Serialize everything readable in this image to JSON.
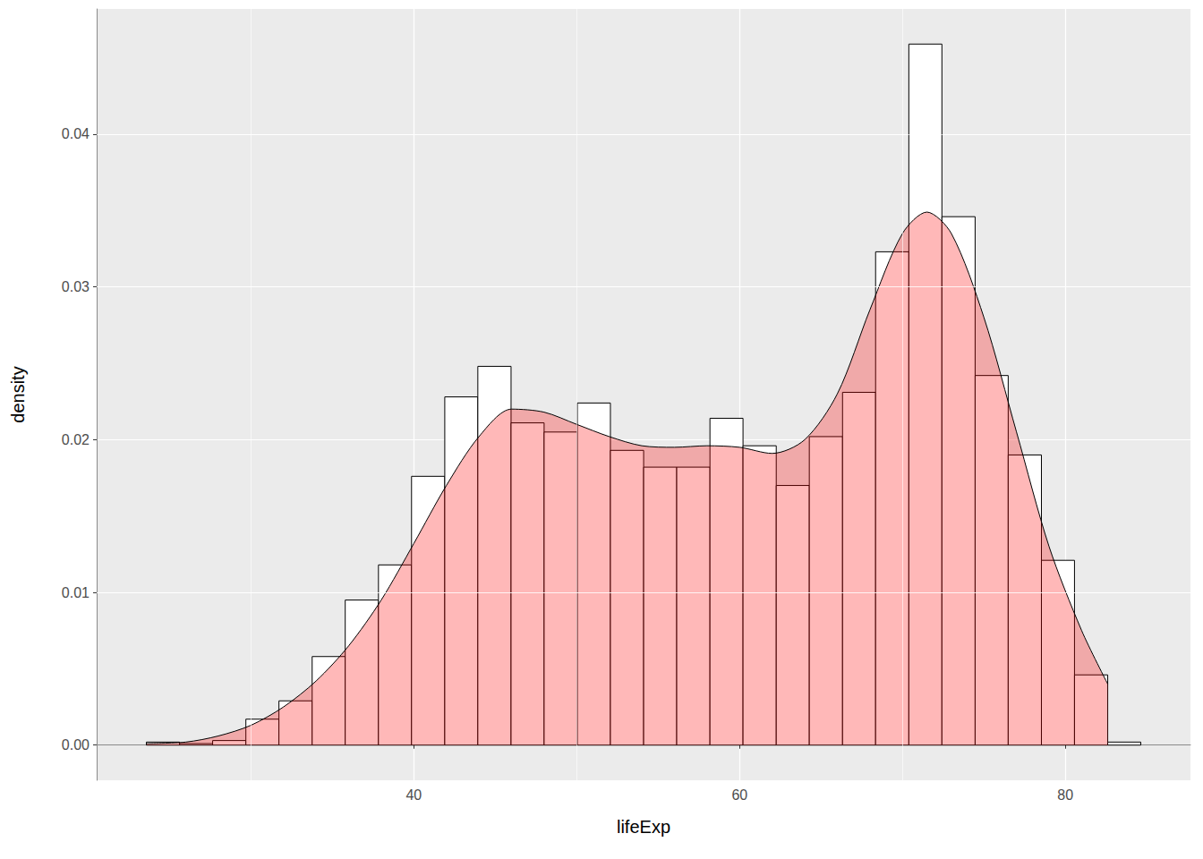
{
  "chart_data": {
    "type": "histogram",
    "x_label": "lifeExp",
    "y_label": "density",
    "bins": [
      23.58,
      25.62,
      27.65,
      29.69,
      31.72,
      33.76,
      35.79,
      37.83,
      39.86,
      41.9,
      43.93,
      45.97,
      48.0,
      50.04,
      52.07,
      54.11,
      56.14,
      58.18,
      60.21,
      62.25,
      64.28,
      66.32,
      68.35,
      70.39,
      72.42,
      74.46,
      76.49,
      78.53,
      80.56,
      82.6,
      84.63
    ],
    "values": [
      0.0002,
      0.0001,
      0.0003,
      0.0017,
      0.0029,
      0.0058,
      0.0095,
      0.0118,
      0.0176,
      0.0228,
      0.0248,
      0.0211,
      0.0205,
      0.0224,
      0.0193,
      0.0182,
      0.0182,
      0.0214,
      0.0196,
      0.017,
      0.0202,
      0.0231,
      0.0323,
      0.0459,
      0.0346,
      0.0242,
      0.019,
      0.0121,
      0.0046,
      0.0002
    ],
    "color": "#ffffff",
    "series": [
      {
        "type": "area",
        "color": "#ff0000",
        "x": [
          23.6,
          26,
          28,
          30,
          32,
          34,
          36,
          38,
          40,
          42,
          44,
          46,
          48,
          50,
          52,
          54,
          56,
          58,
          60,
          62,
          64,
          66,
          68,
          70,
          71.5,
          73,
          75,
          77,
          79,
          81,
          82.6
        ],
        "values": [
          0.0001,
          0.0002,
          0.0006,
          0.0013,
          0.0025,
          0.0042,
          0.0065,
          0.0095,
          0.0132,
          0.017,
          0.0202,
          0.022,
          0.0218,
          0.021,
          0.0202,
          0.0196,
          0.0195,
          0.0196,
          0.0195,
          0.0191,
          0.02,
          0.023,
          0.0285,
          0.0335,
          0.0349,
          0.0335,
          0.028,
          0.0205,
          0.013,
          0.0075,
          0.004
        ]
      }
    ],
    "xlim": [
      20.53,
      87.68
    ],
    "xticks": [
      40,
      60,
      80
    ],
    "ylim": [
      -0.0023,
      0.0482
    ],
    "yticks": [
      {
        "value": 0,
        "label": "0.00"
      },
      {
        "value": 0.01,
        "label": "0.01"
      },
      {
        "value": 0.02,
        "label": "0.02"
      },
      {
        "value": 0.03,
        "label": "0.03"
      },
      {
        "value": 0.04,
        "label": "0.04"
      }
    ],
    "grid": true
  }
}
